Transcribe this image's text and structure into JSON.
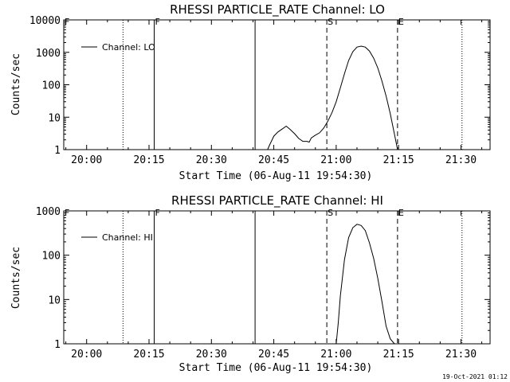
{
  "footer": {
    "timestamp": "19-Oct-2021 01:12"
  },
  "chart_data": [
    {
      "type": "line",
      "title": "RHESSI PARTICLE_RATE Channel: LO",
      "xlabel": "Start Time (06-Aug-11 19:54:30)",
      "ylabel": "Counts/sec",
      "yscale": "log",
      "xlim": [
        "19:54:30",
        "21:37:00"
      ],
      "ylim": [
        1,
        10000
      ],
      "x_ticks": [
        "20:00",
        "20:15",
        "20:30",
        "20:45",
        "21:00",
        "21:15",
        "21:30"
      ],
      "y_ticks": [
        "1",
        "10",
        "100",
        "1000",
        "10000"
      ],
      "legend": {
        "position": "top-left",
        "entries": [
          "Channel: LO"
        ]
      },
      "series": [
        {
          "name": "Channel: LO",
          "x": [
            "20:43:30",
            "20:44:00",
            "20:44:30",
            "20:45:00",
            "20:46:00",
            "20:47:00",
            "20:48:00",
            "20:49:00",
            "20:50:00",
            "20:51:00",
            "20:52:00",
            "20:53:00",
            "20:53:30",
            "20:54:00",
            "20:55:00",
            "20:56:00",
            "20:57:00",
            "20:58:00",
            "20:59:00",
            "21:00:00",
            "21:01:00",
            "21:02:00",
            "21:03:00",
            "21:04:00",
            "21:05:00",
            "21:06:00",
            "21:07:00",
            "21:08:00",
            "21:09:00",
            "21:10:00",
            "21:11:00",
            "21:12:00",
            "21:13:00",
            "21:14:00",
            "21:14:45"
          ],
          "values": [
            1,
            1.4,
            1.9,
            2.6,
            3.5,
            4.3,
            5.3,
            4.1,
            3.1,
            2.2,
            1.8,
            1.8,
            1.7,
            2.3,
            2.8,
            3.3,
            4.6,
            7.5,
            14,
            30,
            80,
            220,
            560,
            1050,
            1450,
            1550,
            1450,
            1100,
            660,
            330,
            130,
            45,
            13,
            3,
            1
          ]
        }
      ],
      "vertical_markers": [
        {
          "label": "F",
          "time": "19:54:30",
          "style": "dotted"
        },
        {
          "label": "",
          "time": "20:08:45",
          "style": "dotted"
        },
        {
          "label": "F",
          "time": "20:16:15",
          "style": "solid"
        },
        {
          "label": "",
          "time": "20:40:30",
          "style": "solid"
        },
        {
          "label": "S",
          "time": "20:57:45",
          "style": "dashed"
        },
        {
          "label": "E",
          "time": "21:14:45",
          "style": "dashed"
        },
        {
          "label": "",
          "time": "21:30:15",
          "style": "dotted"
        }
      ]
    },
    {
      "type": "line",
      "title": "RHESSI PARTICLE_RATE Channel: HI",
      "xlabel": "Start Time (06-Aug-11 19:54:30)",
      "ylabel": "Counts/sec",
      "yscale": "log",
      "xlim": [
        "19:54:30",
        "21:37:00"
      ],
      "ylim": [
        1,
        1000
      ],
      "x_ticks": [
        "20:00",
        "20:15",
        "20:30",
        "20:45",
        "21:00",
        "21:15",
        "21:30"
      ],
      "y_ticks": [
        "1",
        "10",
        "100",
        "1000"
      ],
      "legend": {
        "position": "top-left",
        "entries": [
          "Channel: HI"
        ]
      },
      "series": [
        {
          "name": "Channel: HI",
          "x": [
            "21:00:00",
            "21:00:30",
            "21:01:00",
            "21:02:00",
            "21:03:00",
            "21:04:00",
            "21:05:00",
            "21:06:00",
            "21:07:00",
            "21:08:00",
            "21:09:00",
            "21:10:00",
            "21:11:00",
            "21:12:00",
            "21:13:00",
            "21:14:00"
          ],
          "values": [
            1,
            3,
            12,
            80,
            250,
            420,
            500,
            470,
            360,
            190,
            85,
            30,
            9,
            2.5,
            1.3,
            1
          ]
        }
      ],
      "vertical_markers": [
        {
          "label": "F",
          "time": "19:54:30",
          "style": "dotted"
        },
        {
          "label": "",
          "time": "20:08:45",
          "style": "dotted"
        },
        {
          "label": "F",
          "time": "20:16:15",
          "style": "solid"
        },
        {
          "label": "",
          "time": "20:40:30",
          "style": "solid"
        },
        {
          "label": "S",
          "time": "20:57:45",
          "style": "dashed"
        },
        {
          "label": "E",
          "time": "21:14:45",
          "style": "dashed"
        },
        {
          "label": "",
          "time": "21:30:15",
          "style": "dotted"
        }
      ]
    }
  ]
}
